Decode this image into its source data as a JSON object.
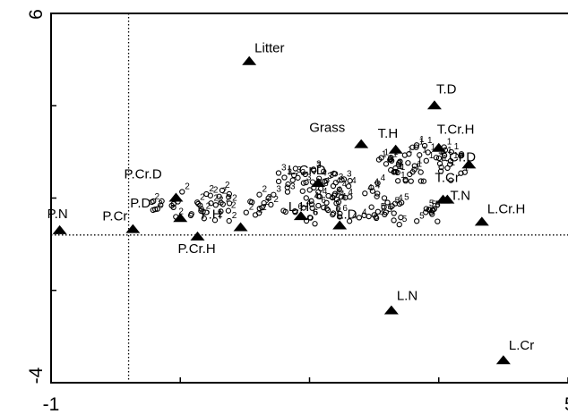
{
  "chart_data": {
    "type": "scatter",
    "title": "",
    "xlabel": "",
    "ylabel": "",
    "xlim": [
      -1,
      5
    ],
    "ylim": [
      -4,
      6
    ],
    "x_tick_labels": [
      "-1",
      "5"
    ],
    "y_tick_labels": [
      "6",
      "-4"
    ],
    "reference_lines": {
      "x": -0.1,
      "y": 0
    },
    "grid": false,
    "legend": "none",
    "marker_color": "#000000",
    "variables": [
      {
        "label": "Litter",
        "x": 1.3,
        "y": 4.7
      },
      {
        "label": "T.D",
        "x": 3.45,
        "y": 3.5
      },
      {
        "label": "Grass",
        "x": 2.6,
        "y": 2.45
      },
      {
        "label": "T.H",
        "x": 3.0,
        "y": 2.3
      },
      {
        "label": "T.Cr.H",
        "x": 3.5,
        "y": 2.35
      },
      {
        "label": "T.Cr.D",
        "x": 3.85,
        "y": 1.9
      },
      {
        "label": "L.Cr.D",
        "x": 2.1,
        "y": 1.4
      },
      {
        "label": "P.Cr.D",
        "x": 0.45,
        "y": 1.0
      },
      {
        "label": "P.D",
        "x": 0.5,
        "y": 0.45
      },
      {
        "label": "P.N",
        "x": -0.9,
        "y": 0.12
      },
      {
        "label": "P.Cr",
        "x": -0.05,
        "y": 0.15
      },
      {
        "label": "T.Cr",
        "x": 3.6,
        "y": 0.95
      },
      {
        "label": "T.N",
        "x": 3.55,
        "y": 0.95
      },
      {
        "label": "L.Cr.H",
        "x": 4.0,
        "y": 0.35
      },
      {
        "label": "P.Cr.H",
        "x": 0.7,
        "y": -0.05
      },
      {
        "label": "P.H",
        "x": 1.2,
        "y": 0.2
      },
      {
        "label": "L.H",
        "x": 1.9,
        "y": 0.5
      },
      {
        "label": "L.D",
        "x": 2.35,
        "y": 0.25
      },
      {
        "label": "L.N",
        "x": 2.95,
        "y": -2.05
      },
      {
        "label": "L.Cr",
        "x": 4.25,
        "y": -3.4
      }
    ],
    "site_groups": [
      {
        "name": "1",
        "cx": 3.3,
        "cy": 1.9,
        "rx": 0.55,
        "ry": 0.55,
        "n": 55
      },
      {
        "name": "2",
        "cx": 0.9,
        "cy": 0.8,
        "rx": 0.75,
        "ry": 0.45,
        "n": 48
      },
      {
        "name": "3",
        "cx": 2.0,
        "cy": 1.35,
        "rx": 0.5,
        "ry": 0.5,
        "n": 30
      },
      {
        "name": "4",
        "cx": 2.45,
        "cy": 1.0,
        "rx": 0.6,
        "ry": 0.65,
        "n": 42
      },
      {
        "name": "5",
        "cx": 3.2,
        "cy": 0.55,
        "rx": 0.45,
        "ry": 0.35,
        "n": 22
      },
      {
        "name": "6",
        "cx": 2.0,
        "cy": 0.55,
        "rx": 0.4,
        "ry": 0.3,
        "n": 14
      }
    ]
  }
}
